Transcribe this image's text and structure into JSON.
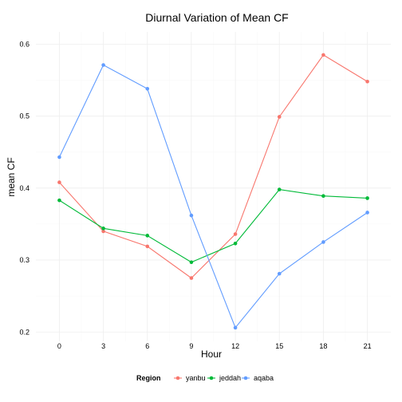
{
  "chart_data": {
    "type": "line",
    "title": "Diurnal Variation of Mean CF",
    "xlabel": "Hour",
    "ylabel": "mean CF",
    "x": [
      0,
      3,
      6,
      9,
      12,
      15,
      18,
      21
    ],
    "xticks": [
      "0",
      "3",
      "6",
      "9",
      "12",
      "15",
      "18",
      "21"
    ],
    "yticks": [
      "0.2",
      "0.3",
      "0.4",
      "0.5",
      "0.6"
    ],
    "xlim": [
      -1.6,
      22.6
    ],
    "ylim": [
      0.187,
      0.617
    ],
    "grid": true,
    "legend": {
      "title": "Region",
      "position": "bottom"
    },
    "series": [
      {
        "name": "yanbu",
        "color": "#F8766D",
        "values": [
          0.408,
          0.34,
          0.319,
          0.275,
          0.336,
          0.499,
          0.585,
          0.548
        ]
      },
      {
        "name": "jeddah",
        "color": "#00BA38",
        "values": [
          0.383,
          0.344,
          0.334,
          0.297,
          0.323,
          0.398,
          0.389,
          0.386
        ]
      },
      {
        "name": "aqaba",
        "color": "#619CFF",
        "values": [
          0.443,
          0.571,
          0.538,
          0.362,
          0.206,
          0.281,
          0.325,
          0.366
        ]
      }
    ]
  }
}
